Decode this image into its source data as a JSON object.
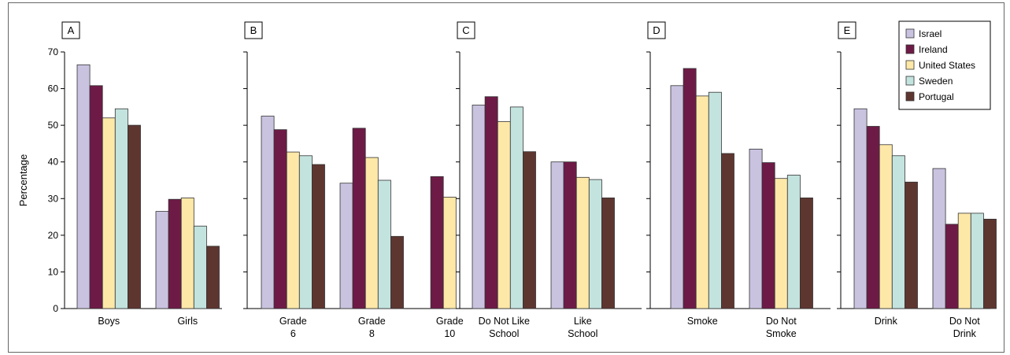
{
  "chart_data": {
    "type": "bar",
    "ylabel": "Percentage",
    "ylim": [
      0,
      70
    ],
    "yticks": [
      0,
      10,
      20,
      30,
      40,
      50,
      60,
      70
    ],
    "grid": false,
    "legend_placement": "top-right",
    "series_names": [
      "Israel",
      "Ireland",
      "United States",
      "Sweden",
      "Portugal"
    ],
    "series_colors": [
      "#c9c3e0",
      "#6e1a47",
      "#fde8a8",
      "#c3e3de",
      "#5e3630"
    ],
    "panels": [
      {
        "letter": "A",
        "categories": [
          [
            "Boys"
          ],
          [
            "Girls"
          ]
        ],
        "values": [
          [
            66.5,
            60.8,
            52.0,
            54.5,
            50.0
          ],
          [
            26.5,
            29.8,
            30.2,
            22.5,
            17.0
          ]
        ]
      },
      {
        "letter": "B",
        "categories": [
          [
            "Grade",
            "6"
          ],
          [
            "Grade",
            "8"
          ],
          [
            "Grade",
            "10"
          ]
        ],
        "values": [
          [
            52.5,
            48.8,
            42.7,
            41.7,
            39.3
          ],
          [
            34.2,
            49.2,
            41.2,
            35.0,
            19.7
          ],
          [
            null,
            36.0,
            30.4,
            null,
            null
          ]
        ]
      },
      {
        "letter": "C",
        "categories": [
          [
            "Do Not Like",
            "School"
          ],
          [
            "Like",
            "School"
          ]
        ],
        "values": [
          [
            55.5,
            57.8,
            51.0,
            55.0,
            42.8
          ],
          [
            40.0,
            40.0,
            35.8,
            35.2,
            30.2
          ]
        ]
      },
      {
        "letter": "D",
        "categories": [
          [
            "Smoke"
          ],
          [
            "Do Not",
            "Smoke"
          ]
        ],
        "values": [
          [
            60.8,
            65.5,
            58.0,
            59.0,
            42.3
          ],
          [
            43.5,
            39.8,
            35.5,
            36.4,
            30.2
          ]
        ]
      },
      {
        "letter": "E",
        "categories": [
          [
            "Drink"
          ],
          [
            "Do Not",
            "Drink"
          ]
        ],
        "values": [
          [
            54.5,
            49.7,
            44.7,
            41.7,
            34.5
          ],
          [
            38.2,
            23.0,
            26.0,
            26.0,
            24.4
          ]
        ]
      }
    ]
  }
}
